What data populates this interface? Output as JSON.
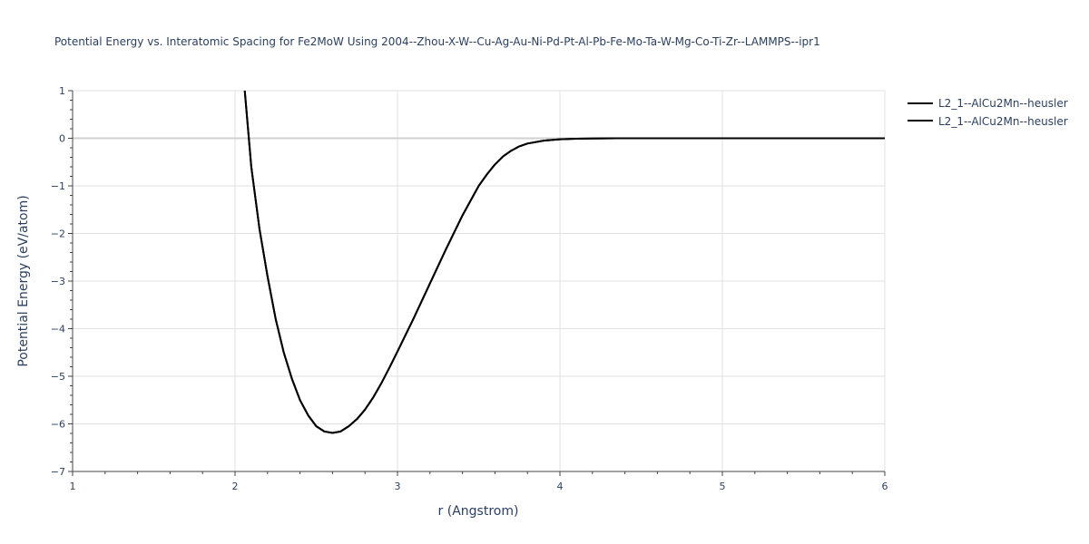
{
  "chart_data": {
    "type": "line",
    "title": "Potential Energy vs. Interatomic Spacing for Fe2MoW Using 2004--Zhou-X-W--Cu-Ag-Au-Ni-Pd-Pt-Al-Pb-Fe-Mo-Ta-W-Mg-Co-Ti-Zr--LAMMPS--ipr1",
    "xlabel": "r (Angstrom)",
    "ylabel": "Potential Energy (eV/atom)",
    "xlim": [
      1,
      6
    ],
    "ylim": [
      -7,
      1
    ],
    "x_ticks": [
      1,
      2,
      3,
      4,
      5,
      6
    ],
    "y_ticks": [
      1,
      0,
      -1,
      -2,
      -3,
      -4,
      -5,
      -6,
      -7
    ],
    "grid": true,
    "legend_position": "top-right",
    "colors": {
      "line": "#000000",
      "grid": "#e1e1e1",
      "zeroline": "#d0d0d0",
      "text": "#2a3f5f"
    },
    "series": [
      {
        "name": "L2_1--AlCu2Mn--heusler",
        "x": [
          2.06,
          2.1,
          2.15,
          2.2,
          2.25,
          2.3,
          2.35,
          2.4,
          2.45,
          2.5,
          2.55,
          2.6,
          2.65,
          2.7,
          2.75,
          2.8,
          2.85,
          2.9,
          2.95,
          3.0,
          3.1,
          3.2,
          3.3,
          3.4,
          3.5,
          3.55,
          3.6,
          3.65,
          3.7,
          3.75,
          3.8,
          3.9,
          4.0,
          4.1,
          4.2,
          4.35,
          4.5,
          5.0,
          5.5,
          6.0
        ],
        "y": [
          1.0,
          -0.6,
          -1.9,
          -2.9,
          -3.8,
          -4.5,
          -5.05,
          -5.5,
          -5.82,
          -6.05,
          -6.16,
          -6.19,
          -6.16,
          -6.05,
          -5.9,
          -5.7,
          -5.45,
          -5.15,
          -4.82,
          -4.48,
          -3.78,
          -3.05,
          -2.32,
          -1.62,
          -1.0,
          -0.76,
          -0.55,
          -0.38,
          -0.26,
          -0.17,
          -0.11,
          -0.05,
          -0.02,
          -0.01,
          -0.005,
          0.0,
          0.0,
          0.0,
          0.0,
          0.0
        ]
      },
      {
        "name": "L2_1--AlCu2Mn--heusler",
        "x": [
          2.06,
          2.1,
          2.15,
          2.2,
          2.25,
          2.3,
          2.35,
          2.4,
          2.45,
          2.5,
          2.55,
          2.6,
          2.65,
          2.7,
          2.75,
          2.8,
          2.85,
          2.9,
          2.95,
          3.0,
          3.1,
          3.2,
          3.3,
          3.4,
          3.5,
          3.55,
          3.6,
          3.65,
          3.7,
          3.75,
          3.8,
          3.9,
          4.0,
          4.1,
          4.2,
          4.35,
          4.5,
          5.0,
          5.5,
          6.0
        ],
        "y": [
          1.0,
          -0.6,
          -1.9,
          -2.9,
          -3.8,
          -4.5,
          -5.05,
          -5.5,
          -5.82,
          -6.05,
          -6.16,
          -6.19,
          -6.16,
          -6.05,
          -5.9,
          -5.7,
          -5.45,
          -5.15,
          -4.82,
          -4.48,
          -3.78,
          -3.05,
          -2.32,
          -1.62,
          -1.0,
          -0.76,
          -0.55,
          -0.38,
          -0.26,
          -0.17,
          -0.11,
          -0.05,
          -0.02,
          -0.01,
          -0.005,
          0.0,
          0.0,
          0.0,
          0.0,
          0.0
        ]
      }
    ]
  }
}
